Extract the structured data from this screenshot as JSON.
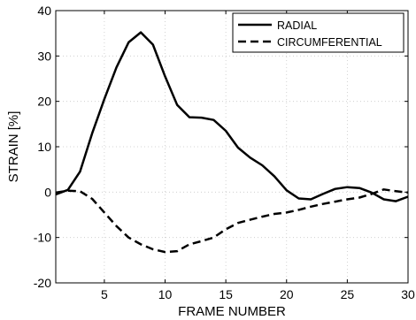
{
  "chart_data": {
    "type": "line",
    "xlabel": "FRAME NUMBER",
    "ylabel": "STRAIN [%]",
    "xlim": [
      1,
      30
    ],
    "ylim": [
      -20,
      40
    ],
    "xticks": [
      5,
      10,
      15,
      20,
      25,
      30
    ],
    "yticks": [
      -20,
      -10,
      0,
      10,
      20,
      30,
      40
    ],
    "grid": "dotted",
    "legend_position": "top-right",
    "series": [
      {
        "name": "RADIAL",
        "style": "solid",
        "color": "#000000",
        "x": [
          1,
          2,
          3,
          4,
          5,
          6,
          7,
          8,
          9,
          10,
          11,
          12,
          13,
          14,
          15,
          16,
          17,
          18,
          19,
          20,
          21,
          22,
          23,
          24,
          25,
          26,
          27,
          28,
          29,
          30
        ],
        "y": [
          -0.5,
          0.5,
          4.5,
          13,
          20.5,
          27.5,
          33,
          35.2,
          32.5,
          25.5,
          19.2,
          16.5,
          16.4,
          15.9,
          13.5,
          9.8,
          7.6,
          5.9,
          3.5,
          0.4,
          -1.4,
          -1.6,
          -0.4,
          0.7,
          1.1,
          0.9,
          -0.1,
          -1.6,
          -2,
          -1
        ]
      },
      {
        "name": "CIRCUMFERENTIAL",
        "style": "dashed",
        "color": "#000000",
        "x": [
          1,
          2,
          3,
          4,
          5,
          6,
          7,
          8,
          9,
          10,
          11,
          12,
          13,
          14,
          15,
          16,
          17,
          18,
          19,
          20,
          21,
          22,
          23,
          24,
          25,
          26,
          27,
          28,
          29,
          30
        ],
        "y": [
          -0.1,
          0.3,
          0.2,
          -1.5,
          -4.5,
          -7.5,
          -10,
          -11.5,
          -12.6,
          -13.2,
          -13,
          -11.5,
          -10.8,
          -10,
          -8.2,
          -6.8,
          -6.1,
          -5.4,
          -4.8,
          -4.5,
          -3.9,
          -3.2,
          -2.6,
          -2.1,
          -1.6,
          -1.2,
          -0.4,
          0.6,
          0.2,
          -0.1
        ]
      }
    ]
  }
}
